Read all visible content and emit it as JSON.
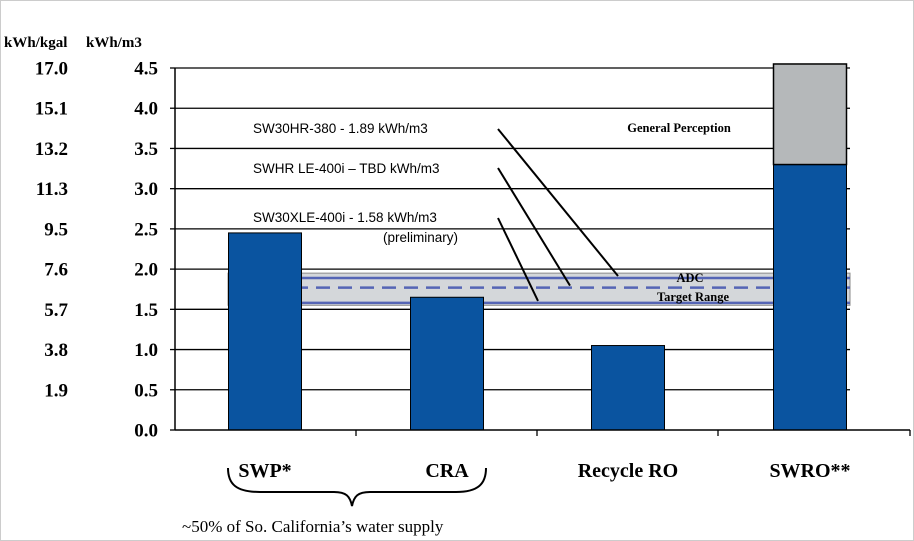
{
  "chart_data": {
    "type": "bar",
    "ylabel_left": "kWh/kgal",
    "ylabel_right": "kWh/m3",
    "ylim": [
      0,
      4.5
    ],
    "yticks_m3": [
      "0.0",
      "0.5",
      "1.0",
      "1.5",
      "2.0",
      "2.5",
      "3.0",
      "3.5",
      "4.0",
      "4.5"
    ],
    "yticks_kgal": [
      "",
      "1.9",
      "3.8",
      "5.7",
      "7.6",
      "9.5",
      "11.3",
      "13.2",
      "15.1",
      "17.0"
    ],
    "grid": true,
    "categories": [
      "SWP*",
      "CRA",
      "Recycle RO",
      "SWRO**"
    ],
    "values": [
      2.45,
      1.65,
      1.05,
      3.3
    ],
    "overlay": {
      "category": "SWRO**",
      "from": 3.3,
      "to": 4.55,
      "label": "General Perception"
    },
    "target_band": {
      "from": 1.55,
      "to": 1.95,
      "label_line1": "ADC",
      "label_line2": "Target Range"
    },
    "membrane_lines": [
      {
        "label": "SW30HR-380 - 1.89 kWh/m3",
        "value": 1.89
      },
      {
        "label": "SWHR LE-400i – TBD kWh/m3",
        "value": 1.77
      },
      {
        "label": "SW30XLE-400i - 1.58 kWh/m3",
        "sublabel": "(preliminary)",
        "value": 1.58
      }
    ],
    "brace_note": "~50% of So. California’s water supply",
    "colors": {
      "bar": "#0a54a0",
      "overlay": "#b5b8ba",
      "band": "#d4d7da",
      "band_line": "#5565b5",
      "grid": "#000000"
    }
  }
}
